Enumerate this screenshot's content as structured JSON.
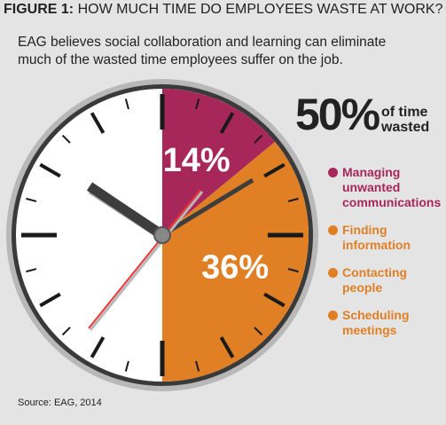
{
  "title_label": "FIGURE 1:",
  "title": "HOW MUCH TIME DO EMPLOYEES WASTE AT WORK?",
  "subtitle": "EAG believes social collaboration and learning can eliminate much of the wasted time employees suffer on the job.",
  "headline": "50%",
  "headline_text": "of time wasted",
  "source": "Source: EAG, 2014",
  "chart_data": {
    "type": "pie",
    "values": [
      14,
      36
    ],
    "value_labels": [
      "14%",
      "36%"
    ],
    "colors": [
      "#a8275a",
      "#e07f24"
    ],
    "legend": [
      {
        "name": "Managing unwanted communications",
        "color": "#a8275a"
      },
      {
        "name": "Finding information",
        "color": "#e07f24"
      },
      {
        "name": "Contacting people",
        "color": "#e07f24"
      },
      {
        "name": "Scheduling meetings",
        "color": "#e07f24"
      }
    ]
  }
}
